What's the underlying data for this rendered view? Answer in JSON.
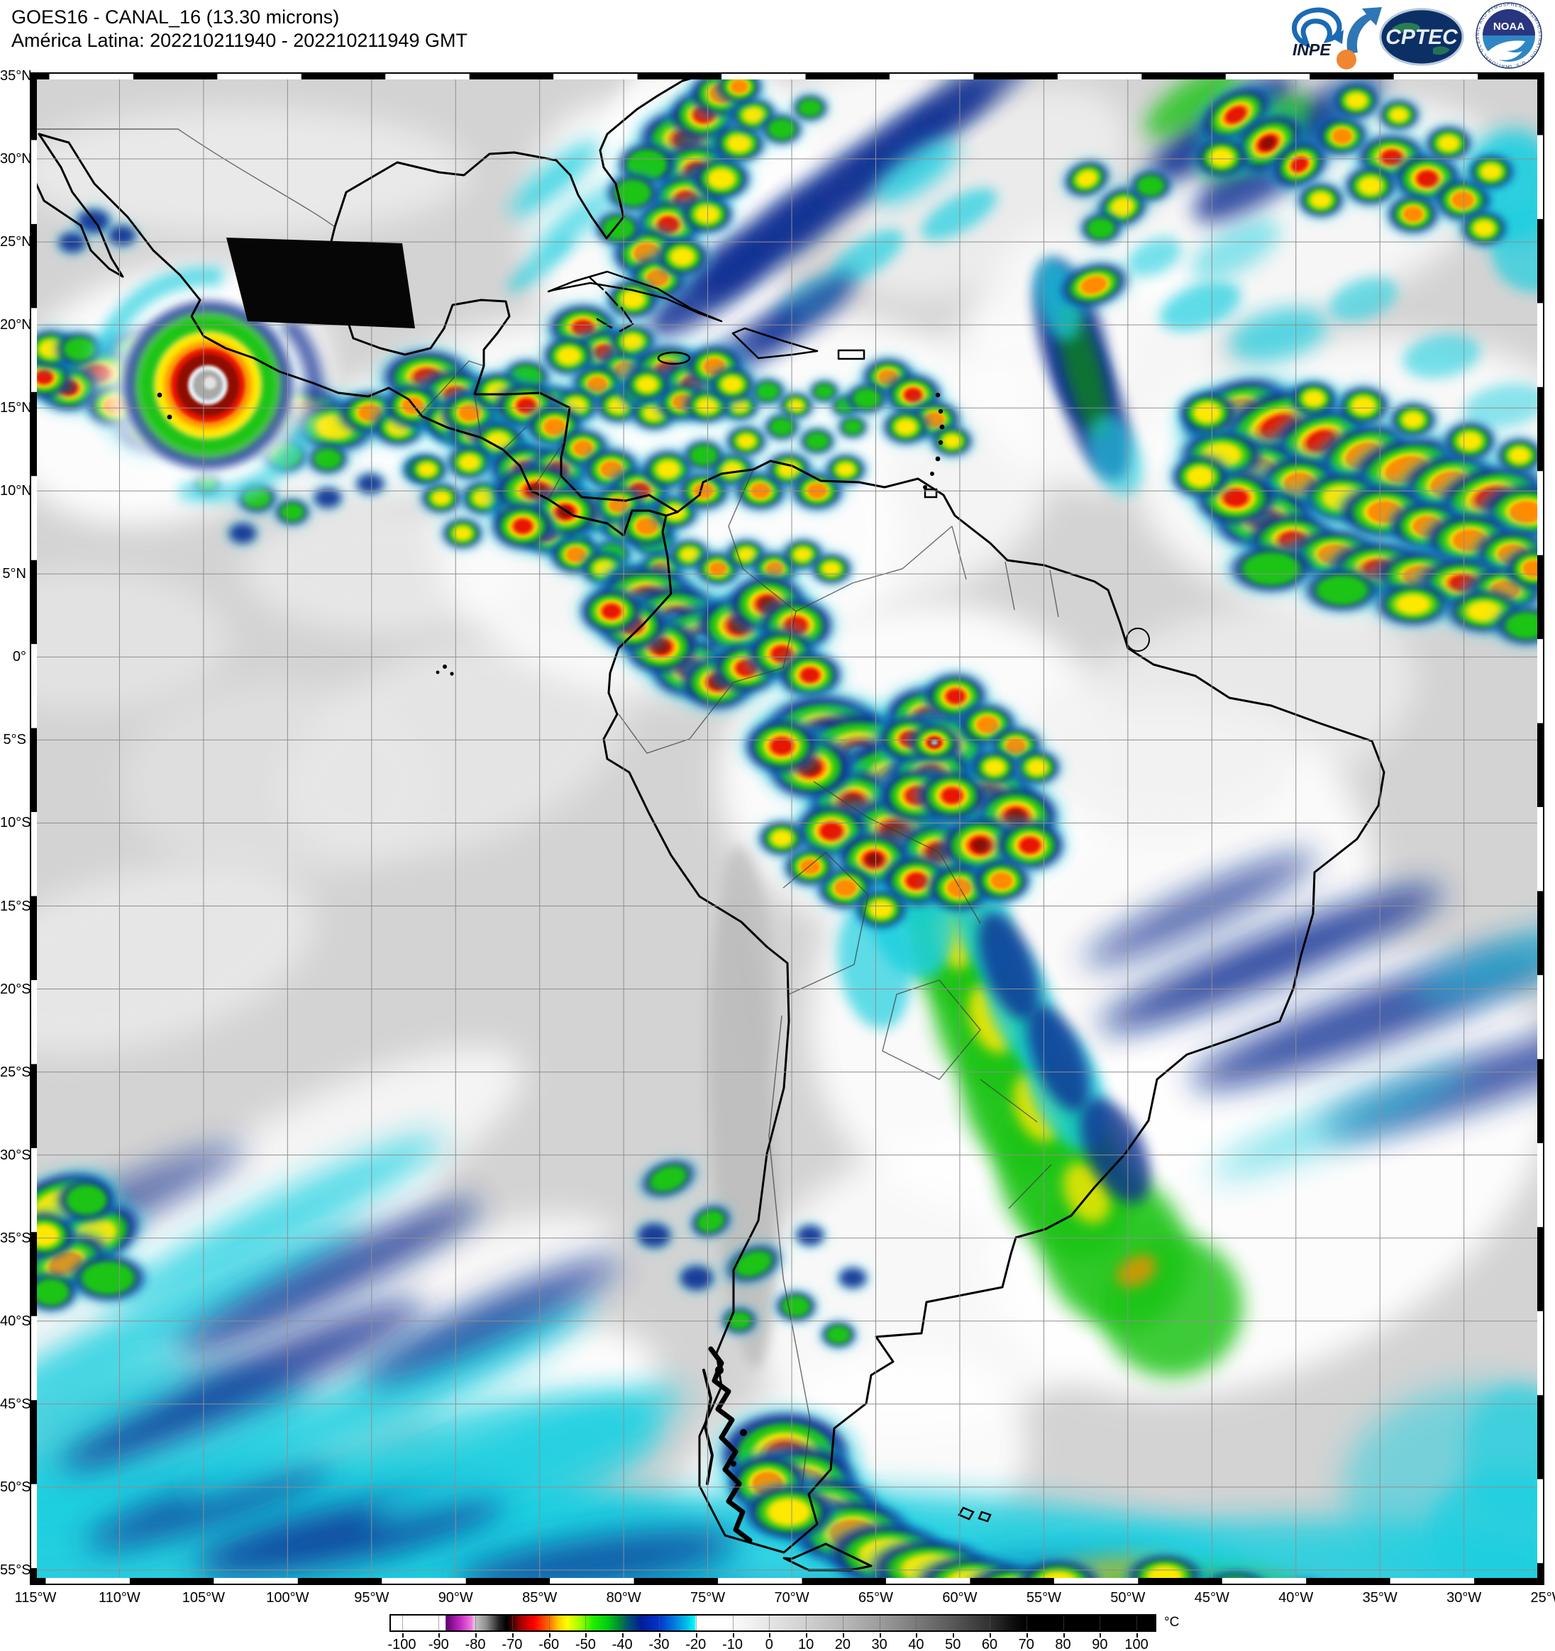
{
  "header": {
    "title_line1": "GOES16 - CANAL_16 (13.30 microns)",
    "title_line2": "América Latina: 202210211940 - 202210211949 GMT"
  },
  "logos": {
    "inpe_label": "INPE",
    "cptec_label": "CPTEC",
    "noaa_label": "NOAA",
    "noaa_ring_text": "NATIONAL OCEANIC AND ATMOSPHERIC ADMINISTRATION · U.S. DEPARTMENT OF COMMERCE"
  },
  "map": {
    "lat_labels": [
      "35°N",
      "30°N",
      "25°N",
      "20°N",
      "15°N",
      "10°N",
      "5°N",
      "0°",
      "5°S",
      "10°S",
      "15°S",
      "20°S",
      "25°S",
      "30°S",
      "35°S",
      "40°S",
      "45°S",
      "50°S",
      "55°S"
    ],
    "lon_labels": [
      "115°W",
      "110°W",
      "105°W",
      "100°W",
      "95°W",
      "90°W",
      "85°W",
      "80°W",
      "75°W",
      "70°W",
      "65°W",
      "60°W",
      "55°W",
      "50°W",
      "45°W",
      "40°W",
      "35°W",
      "30°W",
      "25°W"
    ]
  },
  "colorbar": {
    "unit": "°C",
    "tick_labels": [
      "-100",
      "-90",
      "-80",
      "-70",
      "-60",
      "-50",
      "-40",
      "-30",
      "-20",
      "-10",
      "0",
      "10",
      "20",
      "30",
      "40",
      "50",
      "60",
      "70",
      "80",
      "90",
      "100"
    ],
    "range_min": -100,
    "range_max": 100,
    "stops": [
      [
        -103,
        "#ffffff"
      ],
      [
        -88.2,
        "#ffffff"
      ],
      [
        -88,
        "#5e0070"
      ],
      [
        -84,
        "#c32cc3"
      ],
      [
        -81,
        "#f07ae0"
      ],
      [
        -80.4,
        "#ffb8ef"
      ],
      [
        -80.2,
        "#c9c9c9"
      ],
      [
        -77,
        "#8d8d8d"
      ],
      [
        -73.5,
        "#222222"
      ],
      [
        -71.5,
        "#000000"
      ],
      [
        -70,
        "#400000"
      ],
      [
        -67.5,
        "#a80000"
      ],
      [
        -64,
        "#ff0000"
      ],
      [
        -60,
        "#ff6a00"
      ],
      [
        -57.5,
        "#ffc800"
      ],
      [
        -55,
        "#fdff00"
      ],
      [
        -51.5,
        "#9fff00"
      ],
      [
        -48,
        "#22ee00"
      ],
      [
        -44,
        "#00ce12"
      ],
      [
        -41,
        "#008c32"
      ],
      [
        -38.5,
        "#00556e"
      ],
      [
        -35,
        "#001d96"
      ],
      [
        -30,
        "#0034cb"
      ],
      [
        -26,
        "#0077dd"
      ],
      [
        -22,
        "#00c8ea"
      ],
      [
        -20.15,
        "#00ffff"
      ],
      [
        -20,
        "#ffffff"
      ],
      [
        -12,
        "#ffffff"
      ],
      [
        -5,
        "#f1f1f1"
      ],
      [
        0,
        "#e5e5e5"
      ],
      [
        10,
        "#d0d0d0"
      ],
      [
        20,
        "#b9b9b9"
      ],
      [
        30,
        "#9d9d9d"
      ],
      [
        40,
        "#7b7b7b"
      ],
      [
        50,
        "#585858"
      ],
      [
        60,
        "#313131"
      ],
      [
        67,
        "#0b0b0b"
      ],
      [
        70,
        "#000000"
      ],
      [
        105,
        "#000000"
      ]
    ]
  }
}
